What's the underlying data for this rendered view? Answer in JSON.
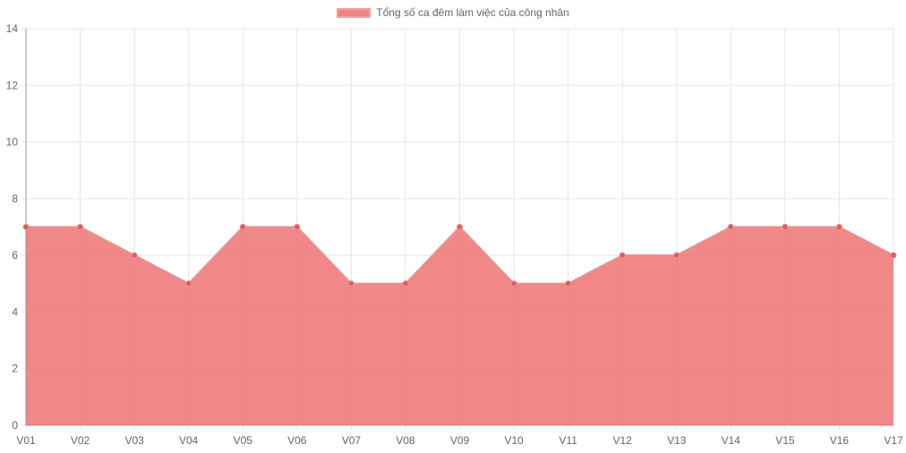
{
  "chart_data": {
    "type": "area",
    "categories": [
      "V01",
      "V02",
      "V03",
      "V04",
      "V05",
      "V06",
      "V07",
      "V08",
      "V09",
      "V10",
      "V11",
      "V12",
      "V13",
      "V14",
      "V15",
      "V16",
      "V17"
    ],
    "series": [
      {
        "name": "Tổng số ca đêm làm việc của công nhân",
        "values": [
          7,
          7,
          6,
          5,
          7,
          7,
          5,
          5,
          7,
          5,
          5,
          6,
          6,
          7,
          7,
          7,
          6
        ]
      }
    ],
    "ylim": [
      0,
      14
    ],
    "y_ticks": [
      0,
      2,
      4,
      6,
      8,
      10,
      12,
      14
    ],
    "grid": true,
    "legend_position": "top",
    "colors": {
      "fill": "#ee6e6e",
      "line": "#e89090",
      "point": "#e05a5a",
      "grid": "#e5e5e5",
      "axis": "#999999",
      "text": "#666666"
    }
  }
}
